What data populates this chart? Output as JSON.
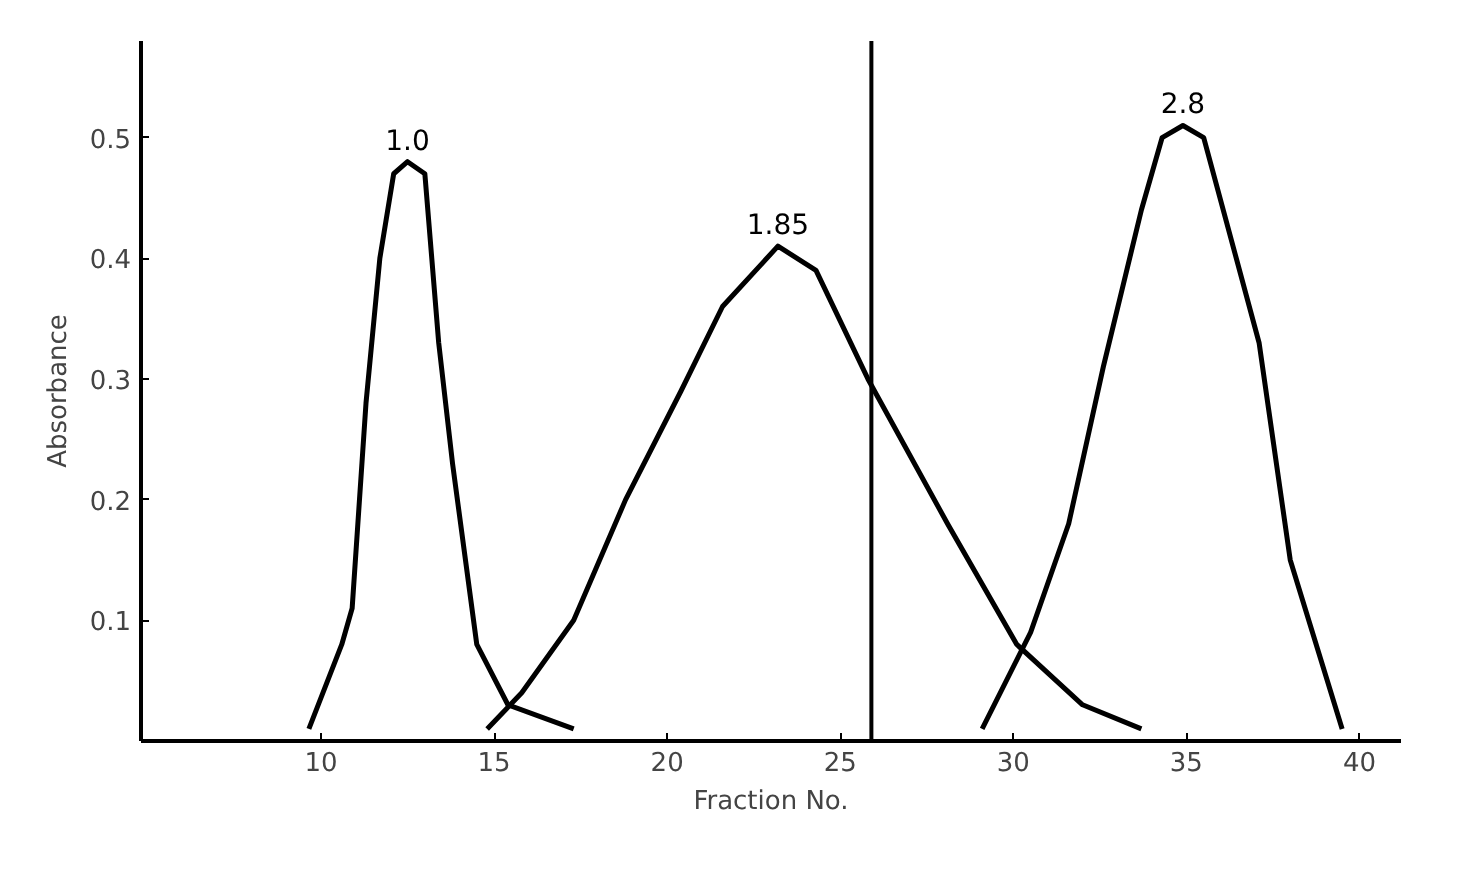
{
  "chart_data": {
    "type": "line",
    "xlabel": "Fraction No.",
    "ylabel": "Absorbance",
    "xlim": [
      4.8,
      41.2
    ],
    "ylim": [
      0,
      0.58
    ],
    "xticks": [
      10,
      15,
      20,
      25,
      30,
      35,
      40
    ],
    "yticks": [
      0.1,
      0.2,
      0.3,
      0.4,
      0.5
    ],
    "grid": false,
    "legend": false,
    "marker": "none",
    "line_style": "solid",
    "ref_lines": [
      {
        "axis": "x",
        "value": 25.9,
        "label": null,
        "color": "#000000"
      }
    ],
    "series": [
      {
        "name": "1.0",
        "color": "#000000",
        "x": [
          9.65,
          10.6,
          10.9,
          11.3,
          11.7,
          12.1,
          12.5,
          13.0,
          13.4,
          13.8,
          14.5,
          15.4,
          17.3
        ],
        "values": [
          0.01,
          0.08,
          0.11,
          0.28,
          0.4,
          0.47,
          0.48,
          0.47,
          0.33,
          0.23,
          0.08,
          0.03,
          0.01
        ]
      },
      {
        "name": "1.85",
        "color": "#000000",
        "x": [
          14.8,
          15.8,
          17.3,
          18.8,
          20.4,
          21.6,
          23.2,
          24.3,
          25.8,
          28.1,
          30.1,
          32.0,
          33.7
        ],
        "values": [
          0.01,
          0.04,
          0.1,
          0.2,
          0.29,
          0.36,
          0.41,
          0.39,
          0.3,
          0.18,
          0.08,
          0.03,
          0.01
        ]
      },
      {
        "name": "2.8",
        "color": "#000000",
        "x": [
          29.1,
          30.5,
          31.6,
          32.6,
          33.7,
          34.3,
          34.9,
          35.5,
          37.1,
          38.0,
          39.5
        ],
        "values": [
          0.01,
          0.09,
          0.18,
          0.31,
          0.44,
          0.5,
          0.51,
          0.5,
          0.33,
          0.15,
          0.01
        ]
      }
    ]
  }
}
